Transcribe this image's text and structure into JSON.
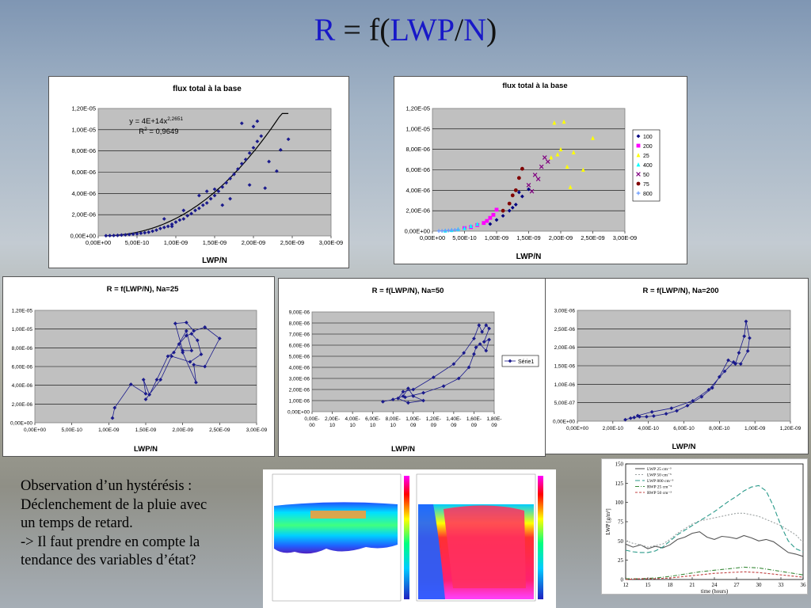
{
  "title": {
    "r": "R",
    "eq": " = f(",
    "lwp": "LWP",
    "slash": "/",
    "n": "N",
    "close": ")"
  },
  "caption": [
    "Observation d’un hystérésis :",
    "Déclenchement de la pluie avec",
    "un temps de retard.",
    "-> Il faut prendre en compte la",
    "tendance des variables d’état?"
  ],
  "colors": {
    "marker": "#1a1a8c",
    "line": "#000000",
    "plot_bg": "#c0c0c0"
  },
  "chart_data": [
    {
      "id": "chart1",
      "type": "scatter",
      "title": "flux total à la base",
      "xlabel": "LWP/N",
      "ylabel": "",
      "xlim": [
        0,
        3e-09
      ],
      "ylim": [
        0,
        1.2e-05
      ],
      "xticks": [
        "0,00E+00",
        "5,00E-10",
        "1,00E-09",
        "1,50E-09",
        "2,00E-09",
        "2,50E-09",
        "3,00E-09"
      ],
      "yticks": [
        "0,00E+00",
        "2,00E-06",
        "4,00E-06",
        "6,00E-06",
        "8,00E-06",
        "1,00E-05",
        "1,20E-05"
      ],
      "grid": true,
      "annotations": [
        "y = 4E+14x",
        "2,2651",
        "R",
        "2",
        " = 0,9649"
      ],
      "fit": {
        "a": 400000000000000.0,
        "b": 2.2651,
        "xrange": [
          1e-10,
          2.45e-09
        ]
      },
      "series": [
        {
          "x": [
            1e-10,
            1.5e-10,
            2e-10,
            2.5e-10,
            3e-10,
            3.5e-10,
            4e-10,
            4.5e-10,
            5e-10,
            5.5e-10,
            6e-10,
            6.5e-10,
            7e-10,
            7.5e-10,
            8e-10,
            8.5e-10,
            9e-10,
            9.5e-10,
            1e-09,
            1.05e-09,
            1.1e-09,
            1.15e-09,
            1.2e-09,
            1.25e-09,
            1.3e-09,
            1.35e-09,
            1.4e-09,
            1.45e-09,
            1.5e-09,
            1.55e-09,
            1.6e-09,
            1.65e-09,
            1.7e-09,
            1.75e-09,
            1.8e-09,
            1.85e-09,
            1.9e-09,
            1.95e-09,
            2e-09,
            2.05e-09,
            2.1e-09,
            2.2e-09,
            2.3e-09,
            2.45e-09,
            1.85e-09,
            2e-09,
            2.05e-09,
            1.5e-09,
            1.3e-09,
            1.6e-09,
            2.15e-09,
            1.95e-09,
            8.5e-10,
            1.1e-09,
            9.5e-10,
            1.4e-09,
            1.7e-09,
            2.35e-09
          ],
          "y": [
            2e-08,
            3e-08,
            4e-08,
            5e-08,
            8e-08,
            1e-07,
            1.3e-07,
            1.7e-07,
            2e-07,
            2.5e-07,
            3e-07,
            3.5e-07,
            4.5e-07,
            5.5e-07,
            7e-07,
            8e-07,
            9e-07,
            1.1e-06,
            1.3e-06,
            1.5e-06,
            1.6e-06,
            1.9e-06,
            2.1e-06,
            2.4e-06,
            2.6e-06,
            2.9e-06,
            3.1e-06,
            3.5e-06,
            3.8e-06,
            4.2e-06,
            4.6e-06,
            5e-06,
            5.4e-06,
            5.8e-06,
            6.3e-06,
            6.8e-06,
            7.2e-06,
            7.8e-06,
            8.3e-06,
            8.9e-06,
            9.4e-06,
            7e-06,
            6.1e-06,
            9.1e-06,
            1.06e-05,
            1.03e-05,
            1.08e-05,
            4.4e-06,
            3.8e-06,
            2.9e-06,
            4.5e-06,
            4.8e-06,
            1.6e-06,
            2.4e-06,
            9e-07,
            4.2e-06,
            3.5e-06,
            8.1e-06
          ]
        }
      ]
    },
    {
      "id": "chart2",
      "type": "scatter",
      "title": "flux total à la base",
      "xlabel": "LWP/N",
      "ylabel": "",
      "xlim": [
        0,
        3e-09
      ],
      "ylim": [
        0,
        1.2e-05
      ],
      "xticks": [
        "0,00E+00",
        "5,00E-10",
        "1,00E-09",
        "1,50E-09",
        "2,00E-09",
        "2,50E-09",
        "3,00E-09"
      ],
      "yticks": [
        "0,00E+00",
        "2,00E-06",
        "4,00E-06",
        "6,00E-06",
        "8,00E-06",
        "1,00E-05",
        "1,20E-05"
      ],
      "grid": true,
      "legend_position": "right",
      "series": [
        {
          "name": "100",
          "color": "#000080",
          "marker": "diamond",
          "x": [
            1.1e-09,
            1.2e-09,
            1.3e-09,
            1.4e-09,
            1.5e-09,
            1.35e-09,
            1.25e-09,
            1e-09,
            9e-10
          ],
          "y": [
            1.5e-06,
            2e-06,
            2.6e-06,
            3.4e-06,
            4.1e-06,
            3.8e-06,
            2.3e-06,
            1.1e-06,
            7e-07
          ]
        },
        {
          "name": "200",
          "color": "#ff00ff",
          "marker": "square",
          "x": [
            8e-10,
            9e-10,
            9.5e-10,
            1e-09,
            7e-10,
            8.5e-10,
            6e-10,
            5e-10
          ],
          "y": [
            8e-07,
            1.3e-06,
            1.6e-06,
            2.1e-06,
            6e-07,
            1e-06,
            4e-07,
            3e-07
          ]
        },
        {
          "name": "25",
          "color": "#ffff00",
          "marker": "triangle",
          "x": [
            1.9e-09,
            2e-09,
            2.05e-09,
            2.1e-09,
            2.2e-09,
            2.35e-09,
            2.5e-09,
            1.85e-09,
            2.15e-09,
            1.95e-09
          ],
          "y": [
            1.06e-05,
            8e-06,
            1.07e-05,
            6.3e-06,
            7.7e-06,
            6e-06,
            9.1e-06,
            7.2e-06,
            4.3e-06,
            7.5e-06
          ]
        },
        {
          "name": "400",
          "color": "#00ffff",
          "marker": "triangle",
          "x": [
            3e-10,
            4e-10,
            5e-10,
            6e-10,
            7e-10,
            2e-10
          ],
          "y": [
            1e-07,
            2e-07,
            3e-07,
            5e-07,
            7e-07,
            5e-08
          ]
        },
        {
          "name": "50",
          "color": "#800080",
          "marker": "x",
          "x": [
            1.5e-09,
            1.6e-09,
            1.7e-09,
            1.75e-09,
            1.8e-09,
            1.55e-09,
            1.65e-09
          ],
          "y": [
            4.5e-06,
            5.5e-06,
            6.3e-06,
            7.2e-06,
            6.8e-06,
            3.9e-06,
            5.1e-06
          ]
        },
        {
          "name": "75",
          "color": "#800000",
          "marker": "circle",
          "x": [
            1.25e-09,
            1.3e-09,
            1.35e-09,
            1.4e-09,
            1.2e-09,
            1.1e-09
          ],
          "y": [
            3.5e-06,
            4e-06,
            5.2e-06,
            6.1e-06,
            2.7e-06,
            2e-06
          ]
        },
        {
          "name": "800",
          "color": "#6699ff",
          "marker": "plus",
          "x": [
            1e-10,
            1.5e-10,
            2e-10,
            2.5e-10,
            3e-10,
            3.5e-10,
            4e-10
          ],
          "y": [
            2e-08,
            3e-08,
            5e-08,
            7e-08,
            1e-07,
            1.2e-07,
            1.5e-07
          ]
        }
      ]
    },
    {
      "id": "chart3",
      "type": "line",
      "title": "R = f(LWP/N), Na=25",
      "xlabel": "LWP/N",
      "ylabel": "",
      "xlim": [
        0,
        3e-09
      ],
      "ylim": [
        0,
        1.2e-05
      ],
      "xticks": [
        "0,00E+00",
        "5,00E-10",
        "1,00E-09",
        "1,50E-09",
        "2,00E-09",
        "2,50E-09",
        "3,00E-09"
      ],
      "yticks": [
        "0,00E+00",
        "2,00E-06",
        "4,00E-06",
        "6,00E-06",
        "8,00E-06",
        "1,00E-05",
        "1,20E-05"
      ],
      "grid": true,
      "series": [
        {
          "x": [
            1.05e-09,
            1.08e-09,
            1.3e-09,
            1.5e-09,
            1.47e-09,
            1.55e-09,
            1.65e-09,
            1.8e-09,
            1.88e-09,
            2.05e-09,
            2.12e-09,
            2e-09,
            1.9e-09,
            2.05e-09,
            2.15e-09,
            2.3e-09,
            2.5e-09,
            2.3e-09,
            2.15e-09,
            2.18e-09,
            2e-09,
            1.95e-09,
            2.05e-09,
            2.12e-09,
            2.2e-09,
            2.25e-09,
            2.1e-09,
            1.85e-09,
            1.7e-09,
            1.5e-09
          ],
          "y": [
            5e-07,
            1.6e-06,
            4.1e-06,
            3.1e-06,
            4.6e-06,
            3e-06,
            4.6e-06,
            7.1e-06,
            7.5e-06,
            9.8e-06,
            7.7e-06,
            7.7e-06,
            1.06e-05,
            1.07e-05,
            9.8e-06,
            1.02e-05,
            9e-06,
            6e-06,
            6.2e-06,
            4.3e-06,
            7.5e-06,
            8.4e-06,
            9.3e-06,
            9.5e-06,
            8.8e-06,
            7.3e-06,
            6.5e-06,
            7.1e-06,
            4.6e-06,
            2.5e-06
          ]
        }
      ]
    },
    {
      "id": "chart4",
      "type": "line",
      "title": "R = f(LWP/N), Na=50",
      "xlabel": "LWP/N",
      "ylabel": "",
      "xlim": [
        0,
        1.8e-09
      ],
      "ylim": [
        0,
        9e-06
      ],
      "xticks": [
        [
          "0,00E-",
          "00"
        ],
        [
          "2,00E-",
          "10"
        ],
        [
          "4,00E-",
          "10"
        ],
        [
          "6,00E-",
          "10"
        ],
        [
          "8,00E-",
          "10"
        ],
        [
          "1,00E-",
          "09"
        ],
        [
          "1,20E-",
          "09"
        ],
        [
          "1,40E-",
          "09"
        ],
        [
          "1,60E-",
          "09"
        ],
        [
          "1,80E-",
          "09"
        ]
      ],
      "yticks": [
        "0,00E+00",
        "1,00E-06",
        "2,00E-06",
        "3,00E-06",
        "4,00E-06",
        "5,00E-06",
        "6,00E-06",
        "7,00E-06",
        "8,00E-06",
        "9,00E-06"
      ],
      "grid": true,
      "legend": [
        "Série1"
      ],
      "legend_position": "right",
      "series": [
        {
          "name": "Série1",
          "x": [
            7e-10,
            8e-10,
            9e-10,
            9.5e-10,
            1e-09,
            1.1e-09,
            9.5e-10,
            8.5e-10,
            9e-10,
            1e-09,
            1.2e-09,
            1.4e-09,
            1.5e-09,
            1.6e-09,
            1.65e-09,
            1.68e-09,
            1.72e-09,
            1.75e-09,
            1.7e-09,
            1.75e-09,
            1.72e-09,
            1.66e-09,
            1.62e-09,
            1.6e-09,
            1.55e-09,
            1.45e-09,
            1.3e-09,
            1.1e-09,
            9.2e-10
          ],
          "y": [
            9e-07,
            1.1e-06,
            1.4e-06,
            2.1e-06,
            1.4e-06,
            1e-06,
            8e-07,
            1.2e-06,
            1.8e-06,
            2e-06,
            3.1e-06,
            4.3e-06,
            5.3e-06,
            6.6e-06,
            7.8e-06,
            7.2e-06,
            7.8e-06,
            7.5e-06,
            6.3e-06,
            6.5e-06,
            5.5e-06,
            6.1e-06,
            5.8e-06,
            5.2e-06,
            4e-06,
            3e-06,
            2.3e-06,
            1.7e-06,
            1.3e-06
          ]
        }
      ]
    },
    {
      "id": "chart5",
      "type": "line",
      "title": "R = f(LWP/N),  Na=200",
      "xlabel": "LWP/N",
      "ylabel": "",
      "xlim": [
        0,
        1.2e-09
      ],
      "ylim": [
        0,
        3e-06
      ],
      "xticks": [
        "0,00E+00",
        "2,00E-10",
        "4,00E-10",
        "6,00E-10",
        "8,00E-10",
        "1,00E-09",
        "1,20E-09"
      ],
      "yticks": [
        "0,00E+00",
        "5,00E-07",
        "1,00E-06",
        "1,50E-06",
        "2,00E-06",
        "2,50E-06",
        "3,00E-06"
      ],
      "grid": true,
      "series": [
        {
          "x": [
            2.7e-10,
            3e-10,
            3.2e-10,
            3.5e-10,
            3.9e-10,
            4.3e-10,
            5e-10,
            5.6e-10,
            6.2e-10,
            7e-10,
            7.6e-10,
            8e-10,
            8.5e-10,
            8.9e-10,
            9.1e-10,
            9.4e-10,
            9.5e-10,
            9.7e-10,
            9.6e-10,
            9.2e-10,
            8.8e-10,
            8.3e-10,
            7.4e-10,
            6.5e-10,
            5.3e-10,
            4.2e-10,
            3.4e-10
          ],
          "y": [
            4e-08,
            8e-08,
            1e-07,
            1.2e-07,
            1.2e-07,
            1.4e-07,
            2e-07,
            2.8e-07,
            4.2e-07,
            6.6e-07,
            9e-07,
            1.2e-06,
            1.65e-06,
            1.55e-06,
            1.85e-06,
            2.3e-06,
            2.7e-06,
            2.25e-06,
            1.9e-06,
            1.55e-06,
            1.6e-06,
            1.35e-06,
            8.5e-07,
            5.5e-07,
            3.5e-07,
            2.5e-07,
            1.5e-07
          ]
        }
      ]
    },
    {
      "id": "chart6",
      "type": "line",
      "title": "",
      "xlabel": "time (hours)",
      "ylabel": "LWP [g/m²]",
      "xlim": [
        12,
        36
      ],
      "ylim": [
        0,
        150
      ],
      "xticks": [
        "12",
        "15",
        "18",
        "21",
        "24",
        "27",
        "30",
        "33",
        "36"
      ],
      "yticks": [
        "0",
        "25",
        "50",
        "75",
        "100",
        "125",
        "150"
      ],
      "grid": false,
      "legend_position": "top-left",
      "series": [
        {
          "name": "LWP  25 cm⁻³",
          "color": "#555555",
          "dash": "",
          "x": [
            12,
            13,
            14,
            15,
            16,
            17,
            18,
            19,
            20,
            21,
            22,
            23,
            24,
            25,
            26,
            27,
            28,
            29,
            30,
            31,
            32,
            33,
            34,
            35,
            36
          ],
          "y": [
            46,
            42,
            45,
            40,
            43,
            41,
            45,
            52,
            55,
            60,
            62,
            55,
            52,
            56,
            55,
            53,
            57,
            54,
            50,
            52,
            49,
            42,
            35,
            33,
            30
          ]
        },
        {
          "name": "LWP  50 cm⁻³",
          "color": "#9aa0a0",
          "dash": "2 2",
          "x": [
            12,
            13,
            14,
            15,
            16,
            17,
            18,
            19,
            20,
            21,
            22,
            23,
            24,
            25,
            26,
            27,
            28,
            29,
            30,
            31,
            32,
            33,
            34,
            35,
            36
          ],
          "y": [
            50,
            47,
            45,
            42,
            44,
            46,
            52,
            60,
            66,
            72,
            76,
            78,
            80,
            82,
            84,
            86,
            86,
            84,
            82,
            78,
            74,
            70,
            64,
            58,
            48
          ]
        },
        {
          "name": "LWP  800 cm⁻³",
          "color": "#2a9a8a",
          "dash": "6 3",
          "x": [
            12,
            13,
            14,
            15,
            16,
            17,
            18,
            19,
            20,
            21,
            22,
            23,
            24,
            25,
            26,
            27,
            28,
            29,
            30,
            31,
            32,
            33,
            34,
            35,
            36
          ],
          "y": [
            38,
            36,
            35,
            35,
            37,
            42,
            50,
            58,
            64,
            70,
            76,
            82,
            88,
            95,
            102,
            108,
            115,
            120,
            122,
            115,
            95,
            70,
            50,
            40,
            36
          ]
        },
        {
          "name": "RWP  25 cm⁻³",
          "color": "#3a8a3a",
          "dash": "5 2 1 2",
          "x": [
            12,
            14,
            16,
            18,
            20,
            22,
            24,
            26,
            28,
            30,
            32,
            34,
            36
          ],
          "y": [
            1,
            1,
            2,
            4,
            7,
            10,
            12,
            14,
            16,
            15,
            12,
            9,
            6
          ]
        },
        {
          "name": "RWP  50 cm⁻³",
          "color": "#c04040",
          "dash": "3 2",
          "x": [
            12,
            14,
            16,
            18,
            20,
            22,
            24,
            26,
            28,
            30,
            32,
            34,
            36
          ],
          "y": [
            0,
            1,
            1,
            2,
            4,
            6,
            8,
            9,
            10,
            9,
            7,
            5,
            3
          ]
        }
      ]
    }
  ]
}
